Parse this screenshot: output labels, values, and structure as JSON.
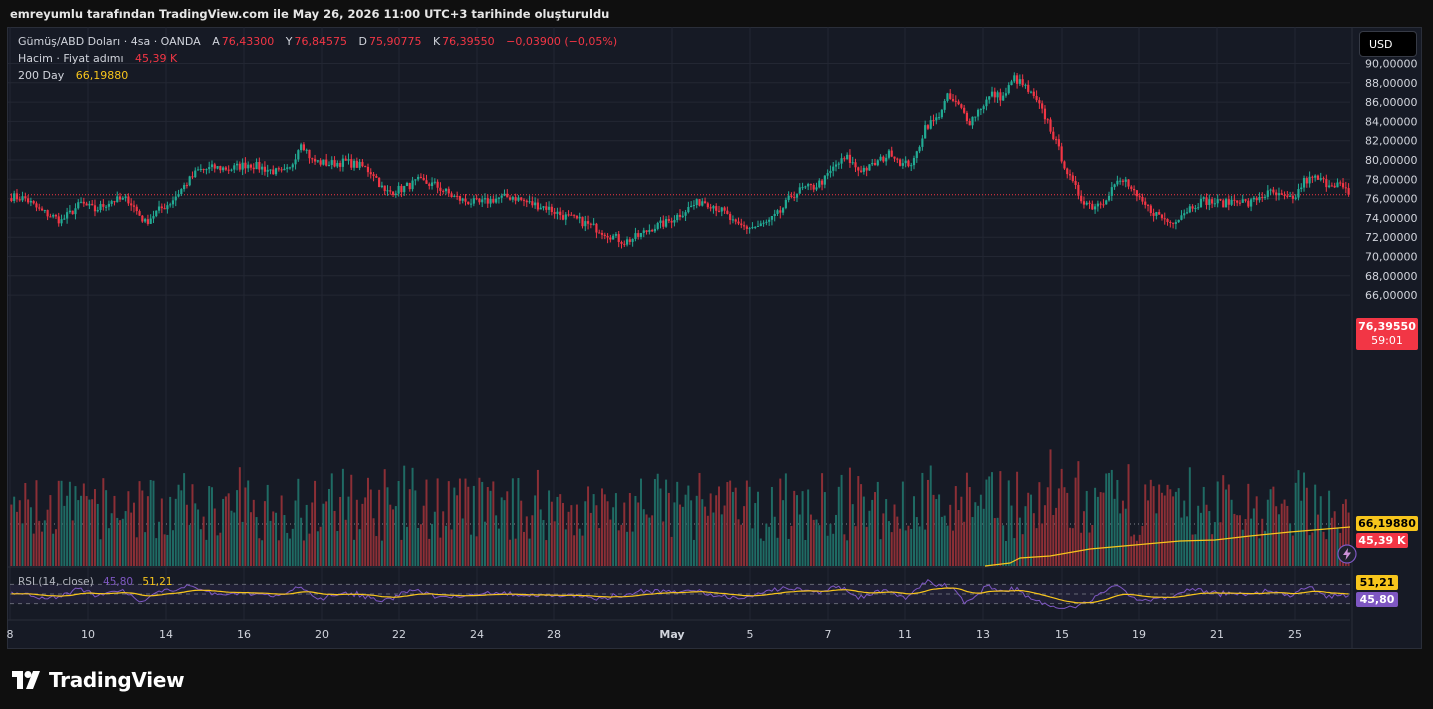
{
  "header": {
    "caption": "emreyumlu tarafından TradingView.com ile May 26, 2026 11:00 UTC+3 tarihinde oluşturuldu"
  },
  "legend": {
    "symbol": "Gümüş/ABD Doları · 4sa · OANDA",
    "open_label": "A",
    "open": "76,43300",
    "high_label": "Y",
    "high": "76,84575",
    "low_label": "D",
    "low": "75,90775",
    "close_label": "K",
    "close": "76,39550",
    "change": "−0,03900 (−0,05%)",
    "volume_label": "Hacim · Fiyat adımı",
    "volume_value": "45,39 K",
    "ma_label": "200 Day",
    "ma_value": "66,19880",
    "rsi_label": "RSI (14, close)",
    "rsi_value": "45,80",
    "rsi_ma_value": "51,21"
  },
  "toolbar": {
    "currency_button": "USD"
  },
  "tags": {
    "price": "76,39550",
    "countdown": "59:01",
    "ma": "66,19880",
    "volume": "45,39 K",
    "rsi_ma": "51,21",
    "rsi": "45,80"
  },
  "brand": {
    "name": "TradingView"
  },
  "colors": {
    "up": "#22ab94",
    "down": "#f23645",
    "vol_up": "#1f6b64",
    "vol_down": "#8c2f36",
    "ma": "#f7c51c",
    "rsi": "#7e57c2",
    "rsi_ma": "#f7c51c",
    "background": "#161a25",
    "grid": "#232733"
  },
  "chart_data": {
    "type": "candlestick",
    "ylim": [
      68.7,
      91.0
    ],
    "y_ticks": [
      "90,00000",
      "88,00000",
      "86,00000",
      "84,00000",
      "82,00000",
      "80,00000",
      "78,00000",
      "76,00000",
      "74,00000",
      "72,00000",
      "70,00000",
      "68,00000",
      "66,00000"
    ],
    "x_ticks": [
      "8",
      "10",
      "14",
      "16",
      "20",
      "22",
      "24",
      "28",
      "May",
      "5",
      "7",
      "11",
      "13",
      "15",
      "19",
      "21",
      "25"
    ],
    "close_line": 76.3955,
    "close_points": [
      [
        0,
        76.2
      ],
      [
        5,
        76.0
      ],
      [
        10,
        74.8
      ],
      [
        18,
        73.7
      ],
      [
        25,
        75.5
      ],
      [
        30,
        74.8
      ],
      [
        36,
        75.8
      ],
      [
        42,
        75.9
      ],
      [
        48,
        73.5
      ],
      [
        52,
        74.6
      ],
      [
        57,
        75.6
      ],
      [
        62,
        77.3
      ],
      [
        67,
        78.9
      ],
      [
        73,
        79.2
      ],
      [
        79,
        79.1
      ],
      [
        85,
        79.6
      ],
      [
        91,
        79.1
      ],
      [
        97,
        78.6
      ],
      [
        100,
        79.0
      ],
      [
        104,
        82.0
      ],
      [
        108,
        79.9
      ],
      [
        114,
        79.6
      ],
      [
        120,
        79.8
      ],
      [
        126,
        79.3
      ],
      [
        130,
        78.6
      ],
      [
        134,
        76.6
      ],
      [
        140,
        77.0
      ],
      [
        146,
        77.8
      ],
      [
        152,
        77.4
      ],
      [
        158,
        76.3
      ],
      [
        162,
        75.8
      ],
      [
        168,
        75.5
      ],
      [
        174,
        76.0
      ],
      [
        180,
        76.2
      ],
      [
        186,
        75.5
      ],
      [
        192,
        75.1
      ],
      [
        198,
        74.2
      ],
      [
        204,
        73.7
      ],
      [
        210,
        72.9
      ],
      [
        215,
        72.2
      ],
      [
        220,
        71.5
      ],
      [
        225,
        72.1
      ],
      [
        230,
        73.0
      ],
      [
        235,
        73.5
      ],
      [
        240,
        74.4
      ],
      [
        244,
        75.2
      ],
      [
        248,
        75.8
      ],
      [
        252,
        75.3
      ],
      [
        256,
        74.5
      ],
      [
        260,
        73.2
      ],
      [
        264,
        73.0
      ],
      [
        268,
        73.1
      ],
      [
        272,
        73.6
      ],
      [
        276,
        74.6
      ],
      [
        280,
        76.3
      ],
      [
        284,
        77.0
      ],
      [
        288,
        77.2
      ],
      [
        292,
        78.0
      ],
      [
        296,
        79.5
      ],
      [
        300,
        80.2
      ],
      [
        304,
        79.0
      ],
      [
        308,
        79.2
      ],
      [
        312,
        80.0
      ],
      [
        316,
        80.8
      ],
      [
        320,
        79.5
      ],
      [
        324,
        79.8
      ],
      [
        328,
        83.5
      ],
      [
        332,
        84.2
      ],
      [
        336,
        86.5
      ],
      [
        340,
        85.6
      ],
      [
        344,
        84.0
      ],
      [
        348,
        85.5
      ],
      [
        352,
        86.8
      ],
      [
        356,
        86.5
      ],
      [
        360,
        88.5
      ],
      [
        364,
        87.5
      ],
      [
        368,
        86.0
      ],
      [
        372,
        84.0
      ],
      [
        376,
        81.0
      ],
      [
        380,
        78.0
      ],
      [
        384,
        76.0
      ],
      [
        388,
        75.2
      ],
      [
        392,
        75.8
      ],
      [
        396,
        77.5
      ],
      [
        400,
        77.8
      ],
      [
        404,
        76.0
      ],
      [
        408,
        75.0
      ],
      [
        412,
        74.2
      ],
      [
        416,
        73.5
      ],
      [
        420,
        74.4
      ],
      [
        424,
        75.3
      ],
      [
        428,
        75.8
      ],
      [
        432,
        75.6
      ],
      [
        436,
        75.5
      ],
      [
        440,
        76.0
      ],
      [
        444,
        75.4
      ],
      [
        448,
        76.2
      ],
      [
        452,
        76.6
      ],
      [
        456,
        76.1
      ],
      [
        460,
        75.8
      ],
      [
        464,
        77.8
      ],
      [
        468,
        78.1
      ],
      [
        472,
        77.6
      ],
      [
        476,
        77.6
      ],
      [
        480,
        76.5
      ]
    ],
    "ma_points": [
      [
        0,
        0
      ],
      [
        100,
        0
      ]
    ],
    "rsi_ylim": [
      0,
      100
    ],
    "rsi_levels": [
      70,
      50,
      30
    ]
  }
}
